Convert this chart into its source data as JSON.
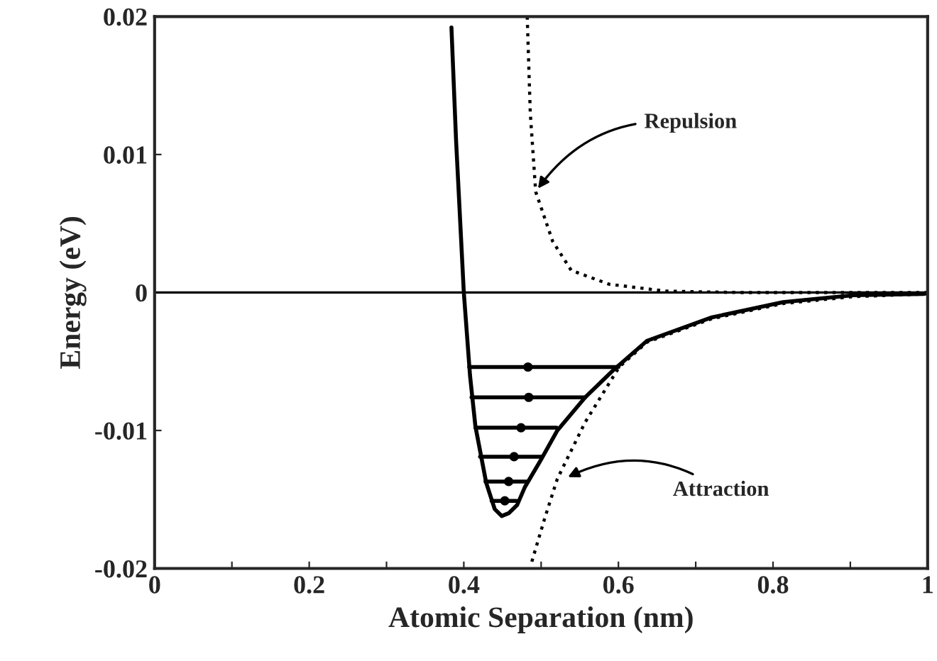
{
  "chart_data": {
    "type": "line",
    "xlabel": "Atomic Separation (nm)",
    "ylabel": "Energy (eV)",
    "xlim": [
      0,
      1
    ],
    "ylim": [
      -0.02,
      0.02
    ],
    "xticks": [
      0,
      {
        "value": 0.1,
        "label": null
      },
      0.2,
      {
        "value": 0.3,
        "label": null
      },
      0.4,
      {
        "value": 0.5,
        "label": null
      },
      0.6,
      {
        "value": 0.7,
        "label": null
      },
      0.8,
      {
        "value": 0.9,
        "label": null
      },
      1
    ],
    "yticks": [
      -0.02,
      -0.01,
      0,
      0.01,
      0.02
    ],
    "grid": false,
    "legend": false,
    "ref_lines": [
      {
        "axis": "y",
        "value": 0,
        "color": "#000000",
        "line_style": "solid"
      }
    ],
    "series": [
      {
        "color": "#000000",
        "line_style": "solid",
        "marker": "none",
        "x": [
          0.384,
          0.39,
          0.4,
          0.408,
          0.415,
          0.429,
          0.44,
          0.449,
          0.458,
          0.469,
          0.479,
          0.5,
          0.521,
          0.557,
          0.594,
          0.637,
          0.721,
          0.813,
          0.904,
          0.995
        ],
        "values": [
          0.0192,
          0.011,
          0.0,
          -0.006,
          -0.0097,
          -0.0138,
          -0.0157,
          -0.0162,
          -0.016,
          -0.0154,
          -0.0141,
          -0.0121,
          -0.01,
          -0.0076,
          -0.0056,
          -0.0035,
          -0.0018,
          -0.0007,
          -0.0002,
          -0.0001
        ]
      },
      {
        "color": "#000000",
        "line_style": "dotted",
        "marker": "none",
        "x": [
          0.482,
          0.486,
          0.493,
          0.515,
          0.539,
          0.588,
          0.661,
          0.752,
          1.0
        ],
        "values": [
          0.02,
          0.013,
          0.0073,
          0.0037,
          0.0016,
          0.0006,
          0.0001,
          0.0,
          0.0
        ]
      },
      {
        "color": "#000000",
        "line_style": "dotted",
        "marker": "none",
        "x": [
          0.488,
          0.505,
          0.521,
          0.557,
          0.601,
          0.637,
          0.721,
          0.813,
          0.904,
          1.0
        ],
        "values": [
          -0.0195,
          -0.0163,
          -0.0135,
          -0.0094,
          -0.0054,
          -0.0036,
          -0.0019,
          -0.0008,
          -0.0003,
          -0.0001
        ]
      },
      {
        "color": "#000000",
        "line_style": "solid",
        "marker": "none",
        "x": [
          0.407,
          0.6
        ],
        "values": [
          -0.0054,
          -0.0054
        ]
      },
      {
        "color": "#000000",
        "line_style": "solid",
        "marker": "none",
        "x": [
          0.41,
          0.557
        ],
        "values": [
          -0.0076,
          -0.0076
        ]
      },
      {
        "color": "#000000",
        "line_style": "solid",
        "marker": "none",
        "x": [
          0.415,
          0.52
        ],
        "values": [
          -0.0098,
          -0.0098
        ]
      },
      {
        "color": "#000000",
        "line_style": "solid",
        "marker": "none",
        "x": [
          0.421,
          0.5
        ],
        "values": [
          -0.0119,
          -0.0119
        ]
      },
      {
        "color": "#000000",
        "line_style": "solid",
        "marker": "none",
        "x": [
          0.428,
          0.482
        ],
        "values": [
          -0.0137,
          -0.0137
        ]
      },
      {
        "color": "#000000",
        "line_style": "solid",
        "marker": "none",
        "x": [
          0.436,
          0.468
        ],
        "values": [
          -0.0151,
          -0.0151
        ]
      },
      {
        "type": "scatter",
        "color": "#000000",
        "marker": "circle",
        "x": [
          0.483,
          0.484,
          0.474,
          0.465,
          0.458,
          0.453
        ],
        "values": [
          -0.0054,
          -0.0076,
          -0.0098,
          -0.0119,
          -0.0137,
          -0.0151
        ]
      }
    ],
    "annotations": [
      {
        "text": "Repulsion",
        "x": 0.493,
        "y": 0.0073
      },
      {
        "text": "Attraction",
        "x": 0.53,
        "y": -0.0135
      }
    ]
  }
}
